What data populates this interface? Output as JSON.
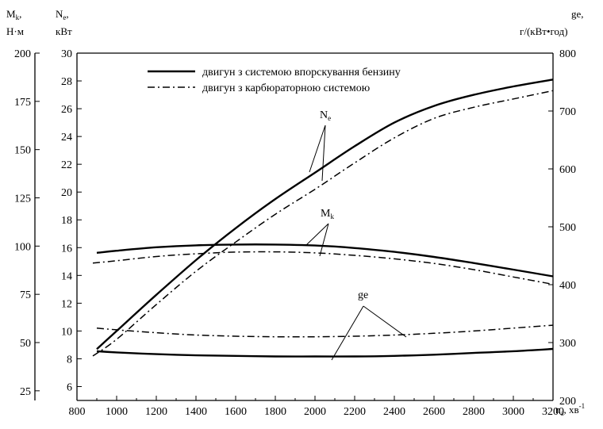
{
  "chart_data": {
    "type": "line",
    "x_axis": {
      "label": "n",
      "label_sub": "а",
      "unit": ", хв",
      "unit_sup": "-1",
      "range": [
        800,
        3200
      ],
      "ticks": [
        800,
        1000,
        1200,
        1400,
        1600,
        1800,
        2000,
        2200,
        2400,
        2600,
        2800,
        3000,
        3200
      ]
    },
    "y_axes": {
      "mk": {
        "label": "M",
        "label_sub": "k",
        "label_suffix": ",",
        "unit": "Н·м",
        "range": [
          20,
          200
        ],
        "ticks": [
          25,
          50,
          75,
          100,
          125,
          150,
          175,
          200
        ]
      },
      "ne": {
        "label": "N",
        "label_sub": "e",
        "label_suffix": ",",
        "unit": "кВт",
        "range": [
          5,
          30
        ],
        "ticks": [
          6,
          8,
          10,
          12,
          14,
          16,
          18,
          20,
          22,
          24,
          26,
          28,
          30
        ]
      },
      "ge": {
        "label": "ge,",
        "unit": "г/(кВт•год)",
        "range": [
          200,
          800
        ],
        "ticks": [
          200,
          300,
          400,
          500,
          600,
          700,
          800
        ]
      }
    },
    "legend": [
      {
        "label": "двигун з системою впорскування бензину",
        "style": "solid"
      },
      {
        "label": "двигун з карбюраторною системою",
        "style": "dash-dot"
      }
    ],
    "annotations": {
      "ne": {
        "text": "N",
        "sub": "e"
      },
      "mk": {
        "text": "M",
        "sub": "k"
      },
      "ge": {
        "text": "ge"
      }
    },
    "series": [
      {
        "curve": "Ne",
        "style": "solid",
        "axis": "ne",
        "x": [
          900,
          1000,
          1200,
          1400,
          1600,
          1800,
          2000,
          2200,
          2400,
          2600,
          2800,
          3000,
          3200
        ],
        "y": [
          8.7,
          10.0,
          12.6,
          15.1,
          17.4,
          19.5,
          21.4,
          23.3,
          25.0,
          26.2,
          27.0,
          27.6,
          28.1
        ]
      },
      {
        "curve": "Ne",
        "style": "dash-dot",
        "axis": "ne",
        "x": [
          880,
          1000,
          1200,
          1400,
          1600,
          1800,
          2000,
          2200,
          2400,
          2600,
          2800,
          3000,
          3200
        ],
        "y": [
          8.2,
          9.4,
          11.9,
          14.3,
          16.4,
          18.4,
          20.2,
          22.1,
          23.9,
          25.3,
          26.1,
          26.7,
          27.3
        ]
      },
      {
        "curve": "Mk",
        "style": "solid",
        "axis": "mk",
        "x": [
          900,
          1000,
          1200,
          1400,
          1600,
          1800,
          2000,
          2200,
          2400,
          2600,
          2800,
          3000,
          3200
        ],
        "y": [
          96.5,
          97.6,
          99.4,
          100.4,
          100.8,
          100.8,
          100.3,
          99.0,
          97.0,
          94.4,
          91.2,
          87.8,
          84.3
        ]
      },
      {
        "curve": "Mk",
        "style": "dash-dot",
        "axis": "mk",
        "x": [
          880,
          1000,
          1200,
          1400,
          1600,
          1800,
          2000,
          2200,
          2400,
          2600,
          2800,
          3000,
          3200
        ],
        "y": [
          91.2,
          92.4,
          94.6,
          96.0,
          96.9,
          97.0,
          96.5,
          95.2,
          93.4,
          91.0,
          87.8,
          84.0,
          80.2
        ]
      },
      {
        "curve": "ge",
        "style": "solid",
        "axis": "ge",
        "x": [
          900,
          1000,
          1200,
          1400,
          1600,
          1800,
          2000,
          2200,
          2400,
          2600,
          2800,
          3000,
          3200
        ],
        "y": [
          285,
          283,
          280,
          278,
          277,
          276,
          276,
          276,
          277,
          279,
          282,
          285,
          289
        ]
      },
      {
        "curve": "ge",
        "style": "dash-dot",
        "axis": "ge",
        "x": [
          900,
          1000,
          1200,
          1400,
          1600,
          1800,
          2000,
          2200,
          2400,
          2600,
          2800,
          3000,
          3200
        ],
        "y": [
          325,
          322,
          317,
          313,
          311,
          310,
          310,
          311,
          313,
          316,
          320,
          325,
          330
        ]
      }
    ]
  }
}
